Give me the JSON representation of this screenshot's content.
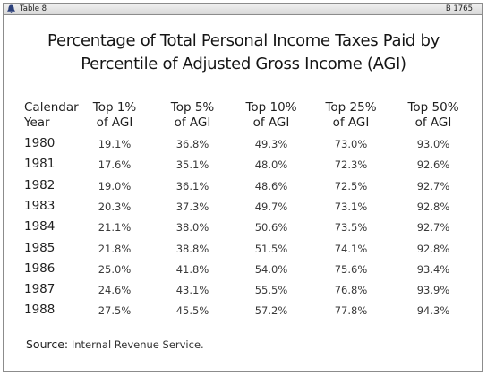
{
  "topbar": {
    "table_label": "Table 8",
    "code": "B 1765"
  },
  "title": {
    "line1": "Percentage of Total Personal Income Taxes Paid by",
    "line2": "Percentile of Adjusted Gross Income (AGI)"
  },
  "table": {
    "headers": [
      [
        "Calendar",
        "Year"
      ],
      [
        "Top 1%",
        "of AGI"
      ],
      [
        "Top 5%",
        "of AGI"
      ],
      [
        "Top 10%",
        "of AGI"
      ],
      [
        "Top 25%",
        "of AGI"
      ],
      [
        "Top 50%",
        "of AGI"
      ]
    ],
    "rows": [
      [
        "1980",
        "19.1%",
        "36.8%",
        "49.3%",
        "73.0%",
        "93.0%"
      ],
      [
        "1981",
        "17.6%",
        "35.1%",
        "48.0%",
        "72.3%",
        "92.6%"
      ],
      [
        "1982",
        "19.0%",
        "36.1%",
        "48.6%",
        "72.5%",
        "92.7%"
      ],
      [
        "1983",
        "20.3%",
        "37.3%",
        "49.7%",
        "73.1%",
        "92.8%"
      ],
      [
        "1984",
        "21.1%",
        "38.0%",
        "50.6%",
        "73.5%",
        "92.7%"
      ],
      [
        "1985",
        "21.8%",
        "38.8%",
        "51.5%",
        "74.1%",
        "92.8%"
      ],
      [
        "1986",
        "25.0%",
        "41.8%",
        "54.0%",
        "75.6%",
        "93.4%"
      ],
      [
        "1987",
        "24.6%",
        "43.1%",
        "55.5%",
        "76.8%",
        "93.9%"
      ],
      [
        "1988",
        "27.5%",
        "45.5%",
        "57.2%",
        "77.8%",
        "94.3%"
      ]
    ]
  },
  "source": {
    "label": "Source:",
    "text": "Internal Revenue Service."
  }
}
